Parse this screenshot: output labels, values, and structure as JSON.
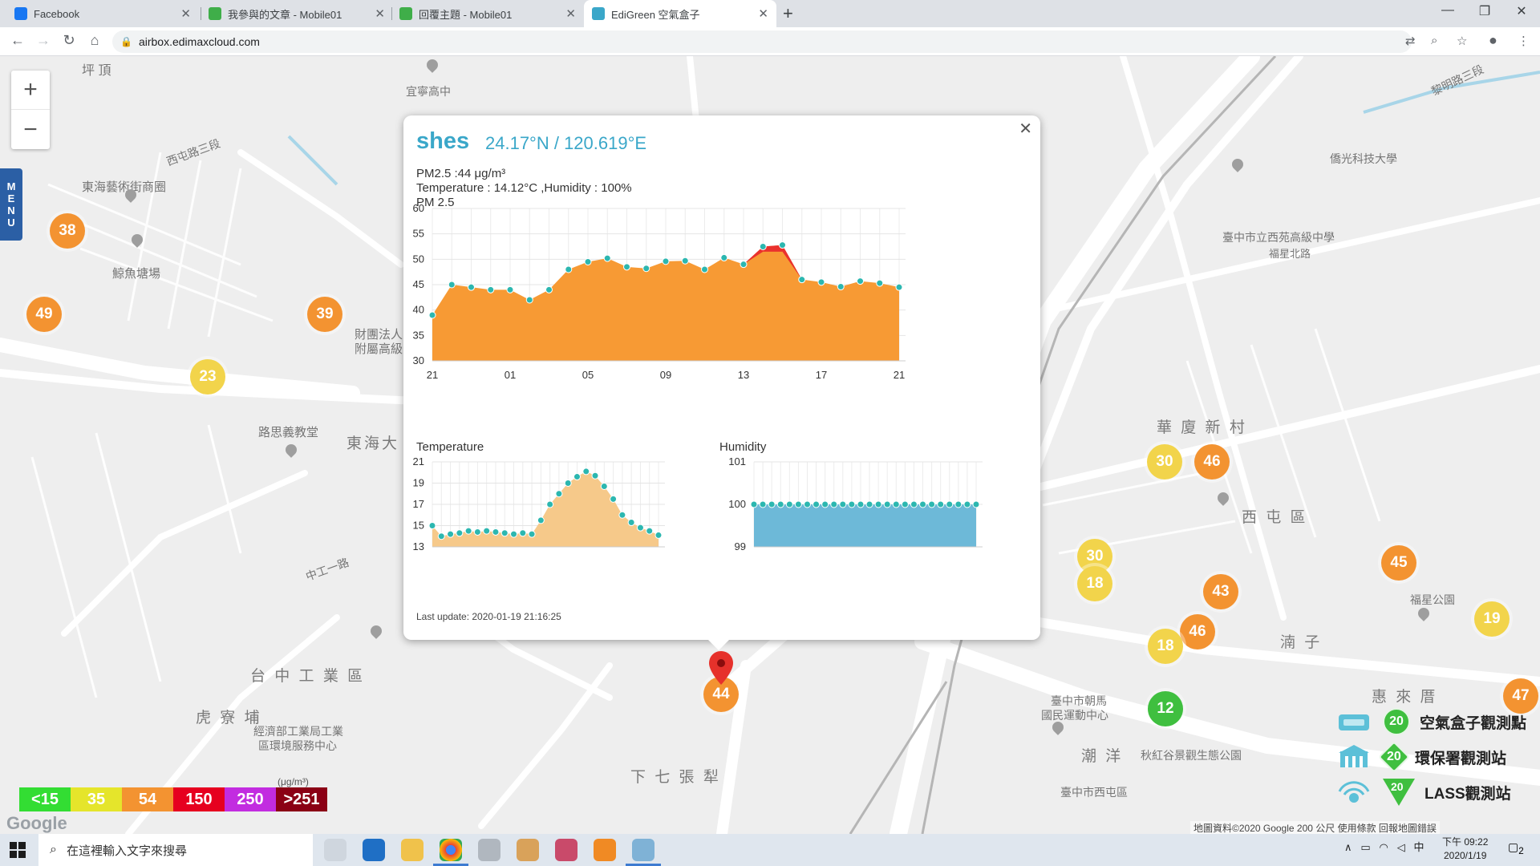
{
  "browser": {
    "tabs": [
      {
        "title": "Facebook",
        "color": "#1877f2"
      },
      {
        "title": "我參與的文章 - Mobile01",
        "color": "#3fae49"
      },
      {
        "title": "回覆主題 - Mobile01",
        "color": "#3fae49"
      },
      {
        "title": "EdiGreen 空氣盒子",
        "color": "#3aa7c9"
      }
    ],
    "url": "airbox.edimaxcloud.com"
  },
  "map": {
    "menu_label": [
      "M",
      "E",
      "N",
      "U"
    ],
    "zoom_in": "+",
    "zoom_out": "−",
    "labels": [
      {
        "text": "坪 頂",
        "big": false
      },
      {
        "text": "東海藝術街商圈",
        "big": false
      },
      {
        "text": "鯨魚塘場",
        "big": false
      },
      {
        "text": "宜寧高中",
        "big": false
      },
      {
        "text": "路思義教堂",
        "big": false
      },
      {
        "text": "東海大",
        "big": true
      },
      {
        "text": "財團法人",
        "big": false
      },
      {
        "text": "附屬高級",
        "big": false
      },
      {
        "text": "台 中 工 業 區",
        "big": true
      },
      {
        "text": "虎 寮 埔",
        "big": true
      },
      {
        "text": "經濟部工業局工業",
        "big": false
      },
      {
        "text": "區環境服務中心",
        "big": false
      },
      {
        "text": "下 七 張 犁",
        "big": true
      },
      {
        "text": "華 廈 新 村",
        "big": true
      },
      {
        "text": "西 屯 區",
        "big": true
      },
      {
        "text": "湳 子",
        "big": true
      },
      {
        "text": "潮 洋",
        "big": true
      },
      {
        "text": "惠 來 厝",
        "big": true
      },
      {
        "text": "僑光科技大學",
        "big": false
      },
      {
        "text": "臺中市立西苑高級中學",
        "big": false
      },
      {
        "text": "福星公園",
        "big": false
      },
      {
        "text": "臺中市朝馬",
        "big": false
      },
      {
        "text": "國民運動中心",
        "big": false
      },
      {
        "text": "秋紅谷景觀生態公園",
        "big": false
      },
      {
        "text": "臺中市西屯區",
        "big": false
      },
      {
        "text": "黎明路三段",
        "big": false
      },
      {
        "text": "西屯路三段",
        "big": false
      },
      {
        "text": "中工一路",
        "big": false
      },
      {
        "text": "福星北路",
        "big": false
      }
    ],
    "markers": [
      {
        "value": "38",
        "color": "orange"
      },
      {
        "value": "49",
        "color": "orange"
      },
      {
        "value": "39",
        "color": "orange"
      },
      {
        "value": "23",
        "color": "yellow"
      },
      {
        "value": "44",
        "color": "orange"
      },
      {
        "value": "30",
        "color": "yellow"
      },
      {
        "value": "46",
        "color": "orange"
      },
      {
        "value": "30",
        "color": "yellow"
      },
      {
        "value": "18",
        "color": "yellow"
      },
      {
        "value": "43",
        "color": "orange"
      },
      {
        "value": "46",
        "color": "orange"
      },
      {
        "value": "18",
        "color": "yellow"
      },
      {
        "value": "12",
        "color": "green"
      },
      {
        "value": "45",
        "color": "orange"
      },
      {
        "value": "19",
        "color": "yellow"
      },
      {
        "value": "47",
        "color": "orange"
      }
    ],
    "scale": {
      "unit": "(μg/m³)",
      "items": [
        {
          "label": "<15",
          "color": "#33dd33"
        },
        {
          "label": "35",
          "color": "#e5e52b"
        },
        {
          "label": "54",
          "color": "#f39331"
        },
        {
          "label": "150",
          "color": "#e6001f"
        },
        {
          "label": "250",
          "color": "#c22ce0"
        },
        {
          "label": ">251",
          "color": "#8b0015"
        }
      ]
    },
    "legend": [
      {
        "badge": "20",
        "label": "空氣盒子觀測點",
        "shape": "circle"
      },
      {
        "badge": "20",
        "label": "環保署觀測站",
        "shape": "diamond"
      },
      {
        "badge": "20",
        "label": "LASS觀測站",
        "shape": "triangle"
      }
    ],
    "google_logo": "Google",
    "attribution": "地圖資料©2020 Google    200 公尺       使用條款    回報地圖錯誤"
  },
  "popup": {
    "name": "shes",
    "coord": "24.17°N / 120.619°E",
    "pm_line": "PM2.5 :44 μg/m³",
    "temp_line": "Temperature : 14.12°C ,Humidity : 100%",
    "last_update": "Last update: 2020-01-19 21:16:25"
  },
  "chart_data": [
    {
      "type": "area",
      "title": "PM 2.5",
      "ylim": [
        30,
        60
      ],
      "yticks": [
        30,
        35,
        40,
        45,
        50,
        55,
        60
      ],
      "xticks": [
        {
          "label": "21",
          "i": 0
        },
        {
          "label": "01",
          "i": 4
        },
        {
          "label": "05",
          "i": 8
        },
        {
          "label": "09",
          "i": 12
        },
        {
          "label": "13",
          "i": 16
        },
        {
          "label": "17",
          "i": 20
        },
        {
          "label": "21",
          "i": 24
        }
      ],
      "values": [
        39,
        45,
        44.5,
        44,
        44,
        42,
        44,
        48,
        49.5,
        50.2,
        48.5,
        48.2,
        49.6,
        49.7,
        48,
        50.3,
        49,
        52.5,
        52.8,
        46,
        45.5,
        44.6,
        45.7,
        45.3,
        44.5
      ],
      "fill": "#f79a34",
      "peak_fill": "#e8262c",
      "point_color": "#2cb7b0"
    },
    {
      "type": "area",
      "title": "Temperature",
      "ylim": [
        13,
        21
      ],
      "yticks": [
        13,
        15,
        17,
        19,
        21
      ],
      "values": [
        15,
        14,
        14.2,
        14.3,
        14.5,
        14.4,
        14.5,
        14.4,
        14.3,
        14.2,
        14.3,
        14.2,
        15.5,
        17,
        18,
        19,
        19.6,
        20.1,
        19.7,
        18.7,
        17.5,
        16,
        15.3,
        14.8,
        14.5,
        14.1
      ],
      "fill": "#f6c98a",
      "point_color": "#2cb7b0"
    },
    {
      "type": "area",
      "title": "Humidity",
      "ylim": [
        99,
        101
      ],
      "yticks": [
        99,
        100,
        101
      ],
      "values": [
        100,
        100,
        100,
        100,
        100,
        100,
        100,
        100,
        100,
        100,
        100,
        100,
        100,
        100,
        100,
        100,
        100,
        100,
        100,
        100,
        100,
        100,
        100,
        100,
        100,
        100
      ],
      "fill": "#6db9d8",
      "point_color": "#2cb7b0"
    }
  ],
  "taskbar": {
    "search_placeholder": "在這裡輸入文字來搜尋",
    "ime": "中",
    "time": "下午 09:22",
    "date": "2020/1/19",
    "notify_count": "2"
  }
}
